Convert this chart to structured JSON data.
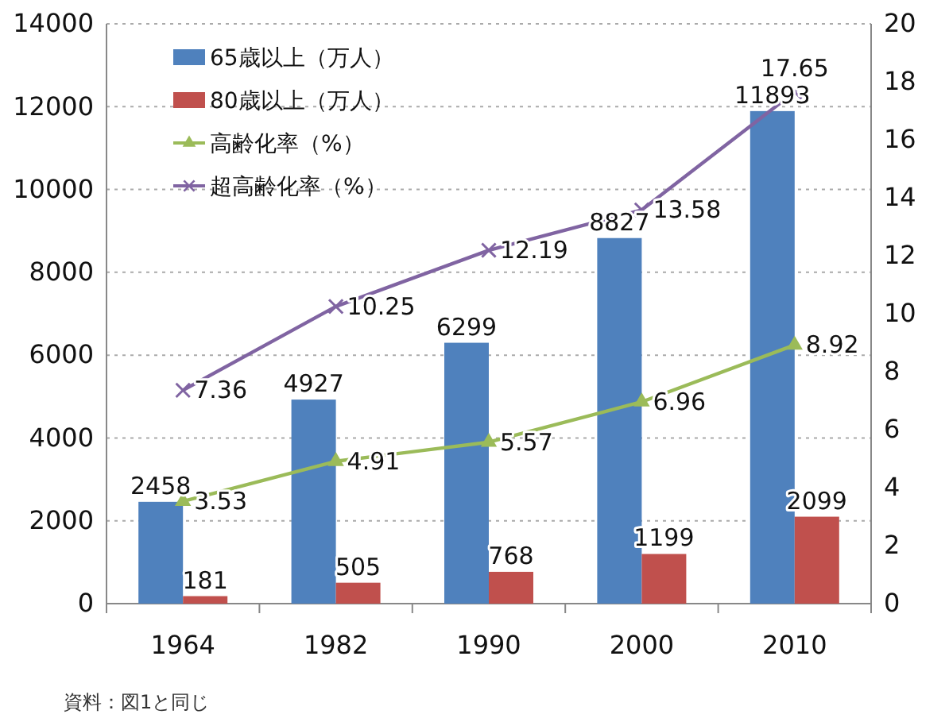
{
  "chart_data": {
    "type": "bar",
    "categories": [
      "1964",
      "1982",
      "1990",
      "2000",
      "2010"
    ],
    "series": [
      {
        "name": "65歳以上（万人）",
        "color": "#4f81bd",
        "values": [
          2458,
          4927,
          6299,
          8827,
          11893
        ]
      },
      {
        "name": "80歳以上（万人）",
        "color": "#c0504d",
        "values": [
          181,
          505,
          768,
          1199,
          2099
        ]
      },
      {
        "name": "高齢化率（%）",
        "type": "line",
        "axis": "y2",
        "marker": "triangle",
        "color": "#9bbb59",
        "values": [
          3.53,
          4.91,
          5.57,
          6.96,
          8.92
        ]
      },
      {
        "name": "超高齢化率（%）",
        "type": "line",
        "axis": "y2",
        "marker": "cross",
        "color": "#8064a2",
        "values": [
          7.36,
          10.25,
          12.19,
          13.58,
          17.65
        ]
      }
    ],
    "ylim": [
      0,
      14000
    ],
    "yticks": [
      0,
      2000,
      4000,
      6000,
      8000,
      10000,
      12000,
      14000
    ],
    "y2lim": [
      0,
      20
    ],
    "y2ticks": [
      0,
      2,
      4,
      6,
      8,
      10,
      12,
      14,
      16,
      18,
      20
    ],
    "grid": "y",
    "legend": "top left",
    "data_labels": true,
    "annotations": [
      "資料：図1と同じ"
    ]
  }
}
